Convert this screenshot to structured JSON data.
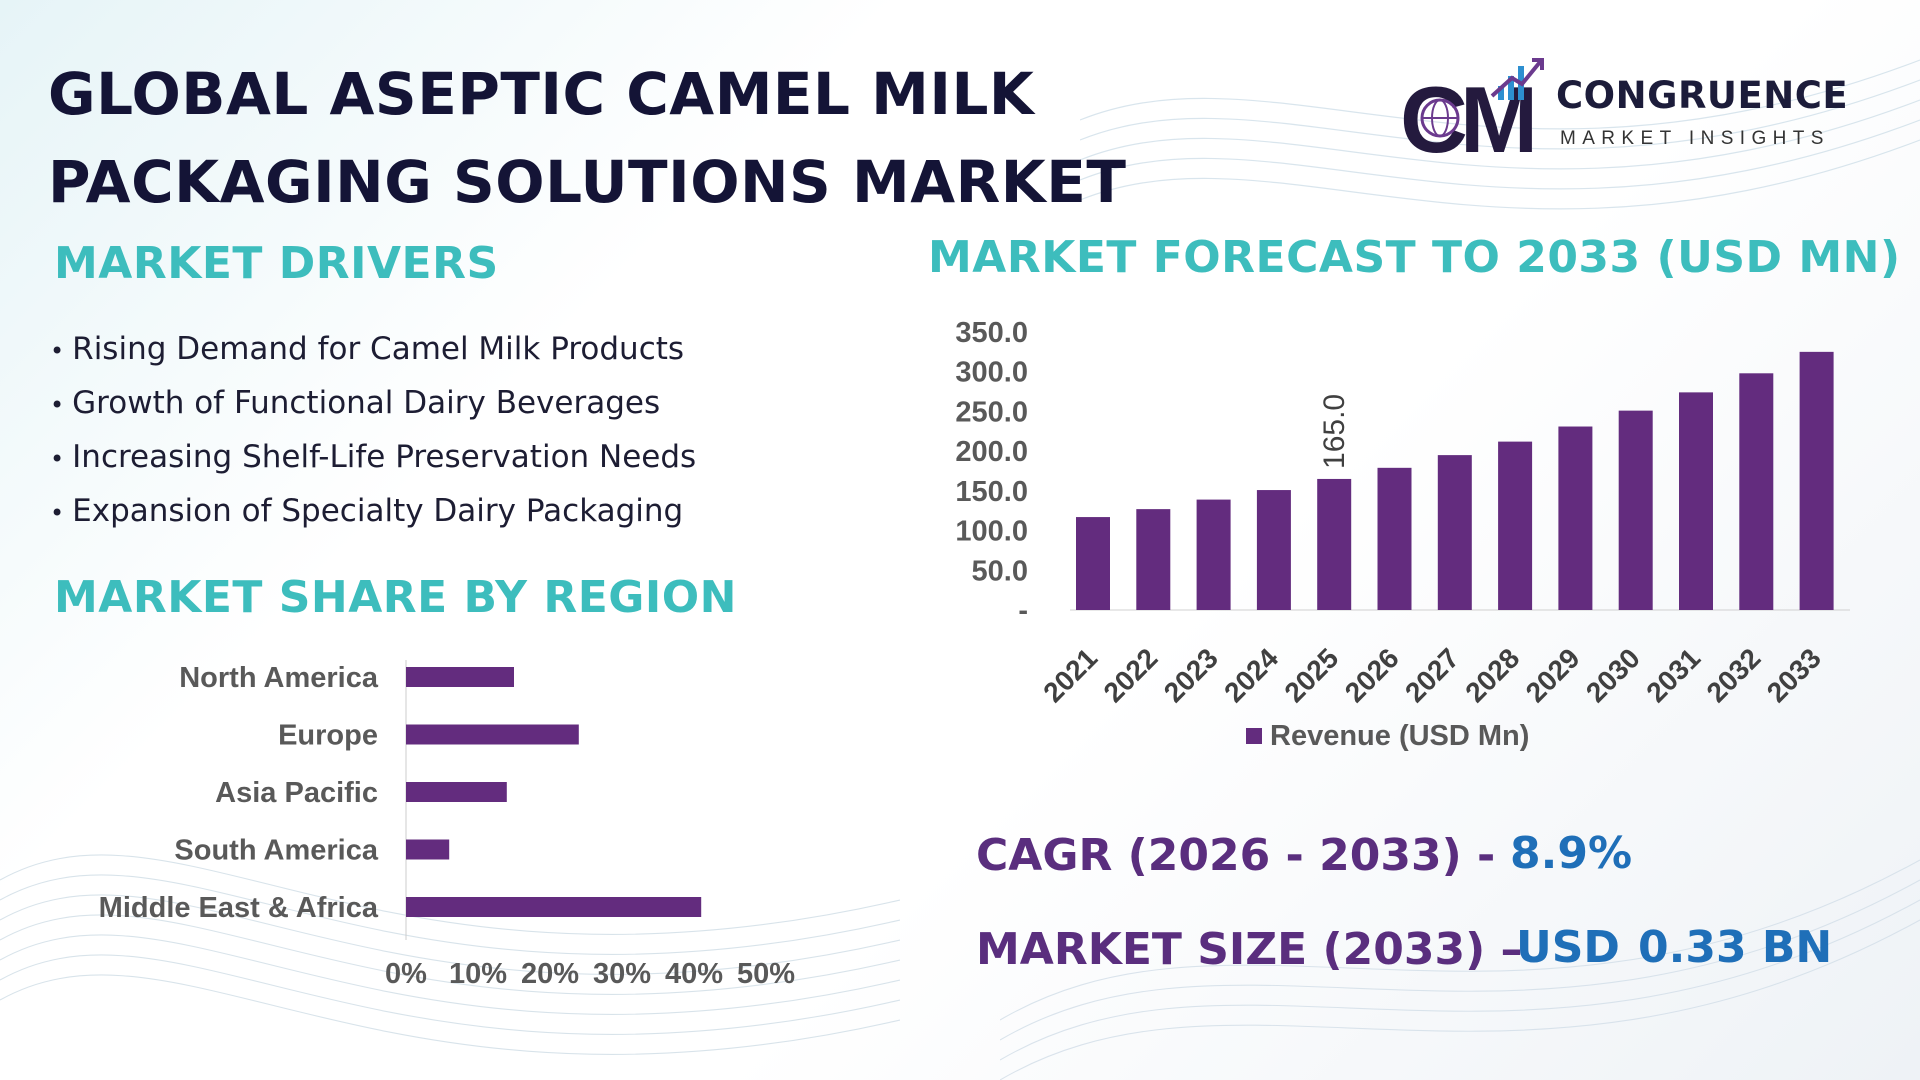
{
  "title_line1": "GLOBAL ASEPTIC CAMEL MILK",
  "title_line2": "PACKAGING SOLUTIONS MARKET",
  "logo": {
    "initials": "CM",
    "name": "CONGRUENCE",
    "subtitle": "MARKET INSIGHTS",
    "icon": "globe-bar-chart-icon"
  },
  "drivers": {
    "heading": "MARKET DRIVERS",
    "items": [
      "Rising Demand for Camel Milk Products",
      "Growth of Functional Dairy Beverages",
      "Increasing Shelf-Life Preservation Needs",
      "Expansion of Specialty Dairy Packaging"
    ]
  },
  "region": {
    "heading": "MARKET SHARE BY REGION"
  },
  "forecast": {
    "heading": "MARKET FORECAST TO 2033 (USD MN)"
  },
  "stats": {
    "cagr_label": "CAGR (2026 - 2033) -",
    "cagr_value": "8.9%",
    "size_label": "MARKET SIZE (2033) –",
    "size_currency": "USD",
    "size_value": "0.33 BN"
  },
  "colors": {
    "bar": "#632c7e",
    "heading_teal": "#3dbdbd",
    "title_navy": "#141436",
    "stat_purple": "#5a2e7e",
    "stat_blue": "#1f6fb8"
  },
  "chart_data": [
    {
      "type": "bar",
      "orientation": "horizontal",
      "categories": [
        "North America",
        "Europe",
        "Asia Pacific",
        "South America",
        "Middle East & Africa"
      ],
      "values": [
        15,
        24,
        14,
        6,
        41
      ],
      "unit": "%",
      "xlim": [
        0,
        50
      ],
      "x_ticks": [
        "0%",
        "10%",
        "20%",
        "30%",
        "40%",
        "50%"
      ],
      "grid": false,
      "legend": "none"
    },
    {
      "type": "bar",
      "orientation": "vertical",
      "categories": [
        "2021",
        "2022",
        "2023",
        "2024",
        "2025",
        "2026",
        "2027",
        "2028",
        "2029",
        "2030",
        "2031",
        "2032",
        "2033"
      ],
      "series": [
        {
          "name": "Revenue (USD Mn)",
          "values": [
            117,
            127,
            139,
            151,
            165,
            179,
            195,
            212,
            231,
            251,
            274,
            298,
            325
          ]
        }
      ],
      "data_labels": [
        {
          "category": "2025",
          "text": "165.0"
        }
      ],
      "ylim": [
        0,
        350
      ],
      "y_ticks": [
        "-",
        "50.0",
        "100.0",
        "150.0",
        "200.0",
        "250.0",
        "300.0",
        "350.0"
      ],
      "grid": false,
      "legend": "bottom-center"
    }
  ]
}
